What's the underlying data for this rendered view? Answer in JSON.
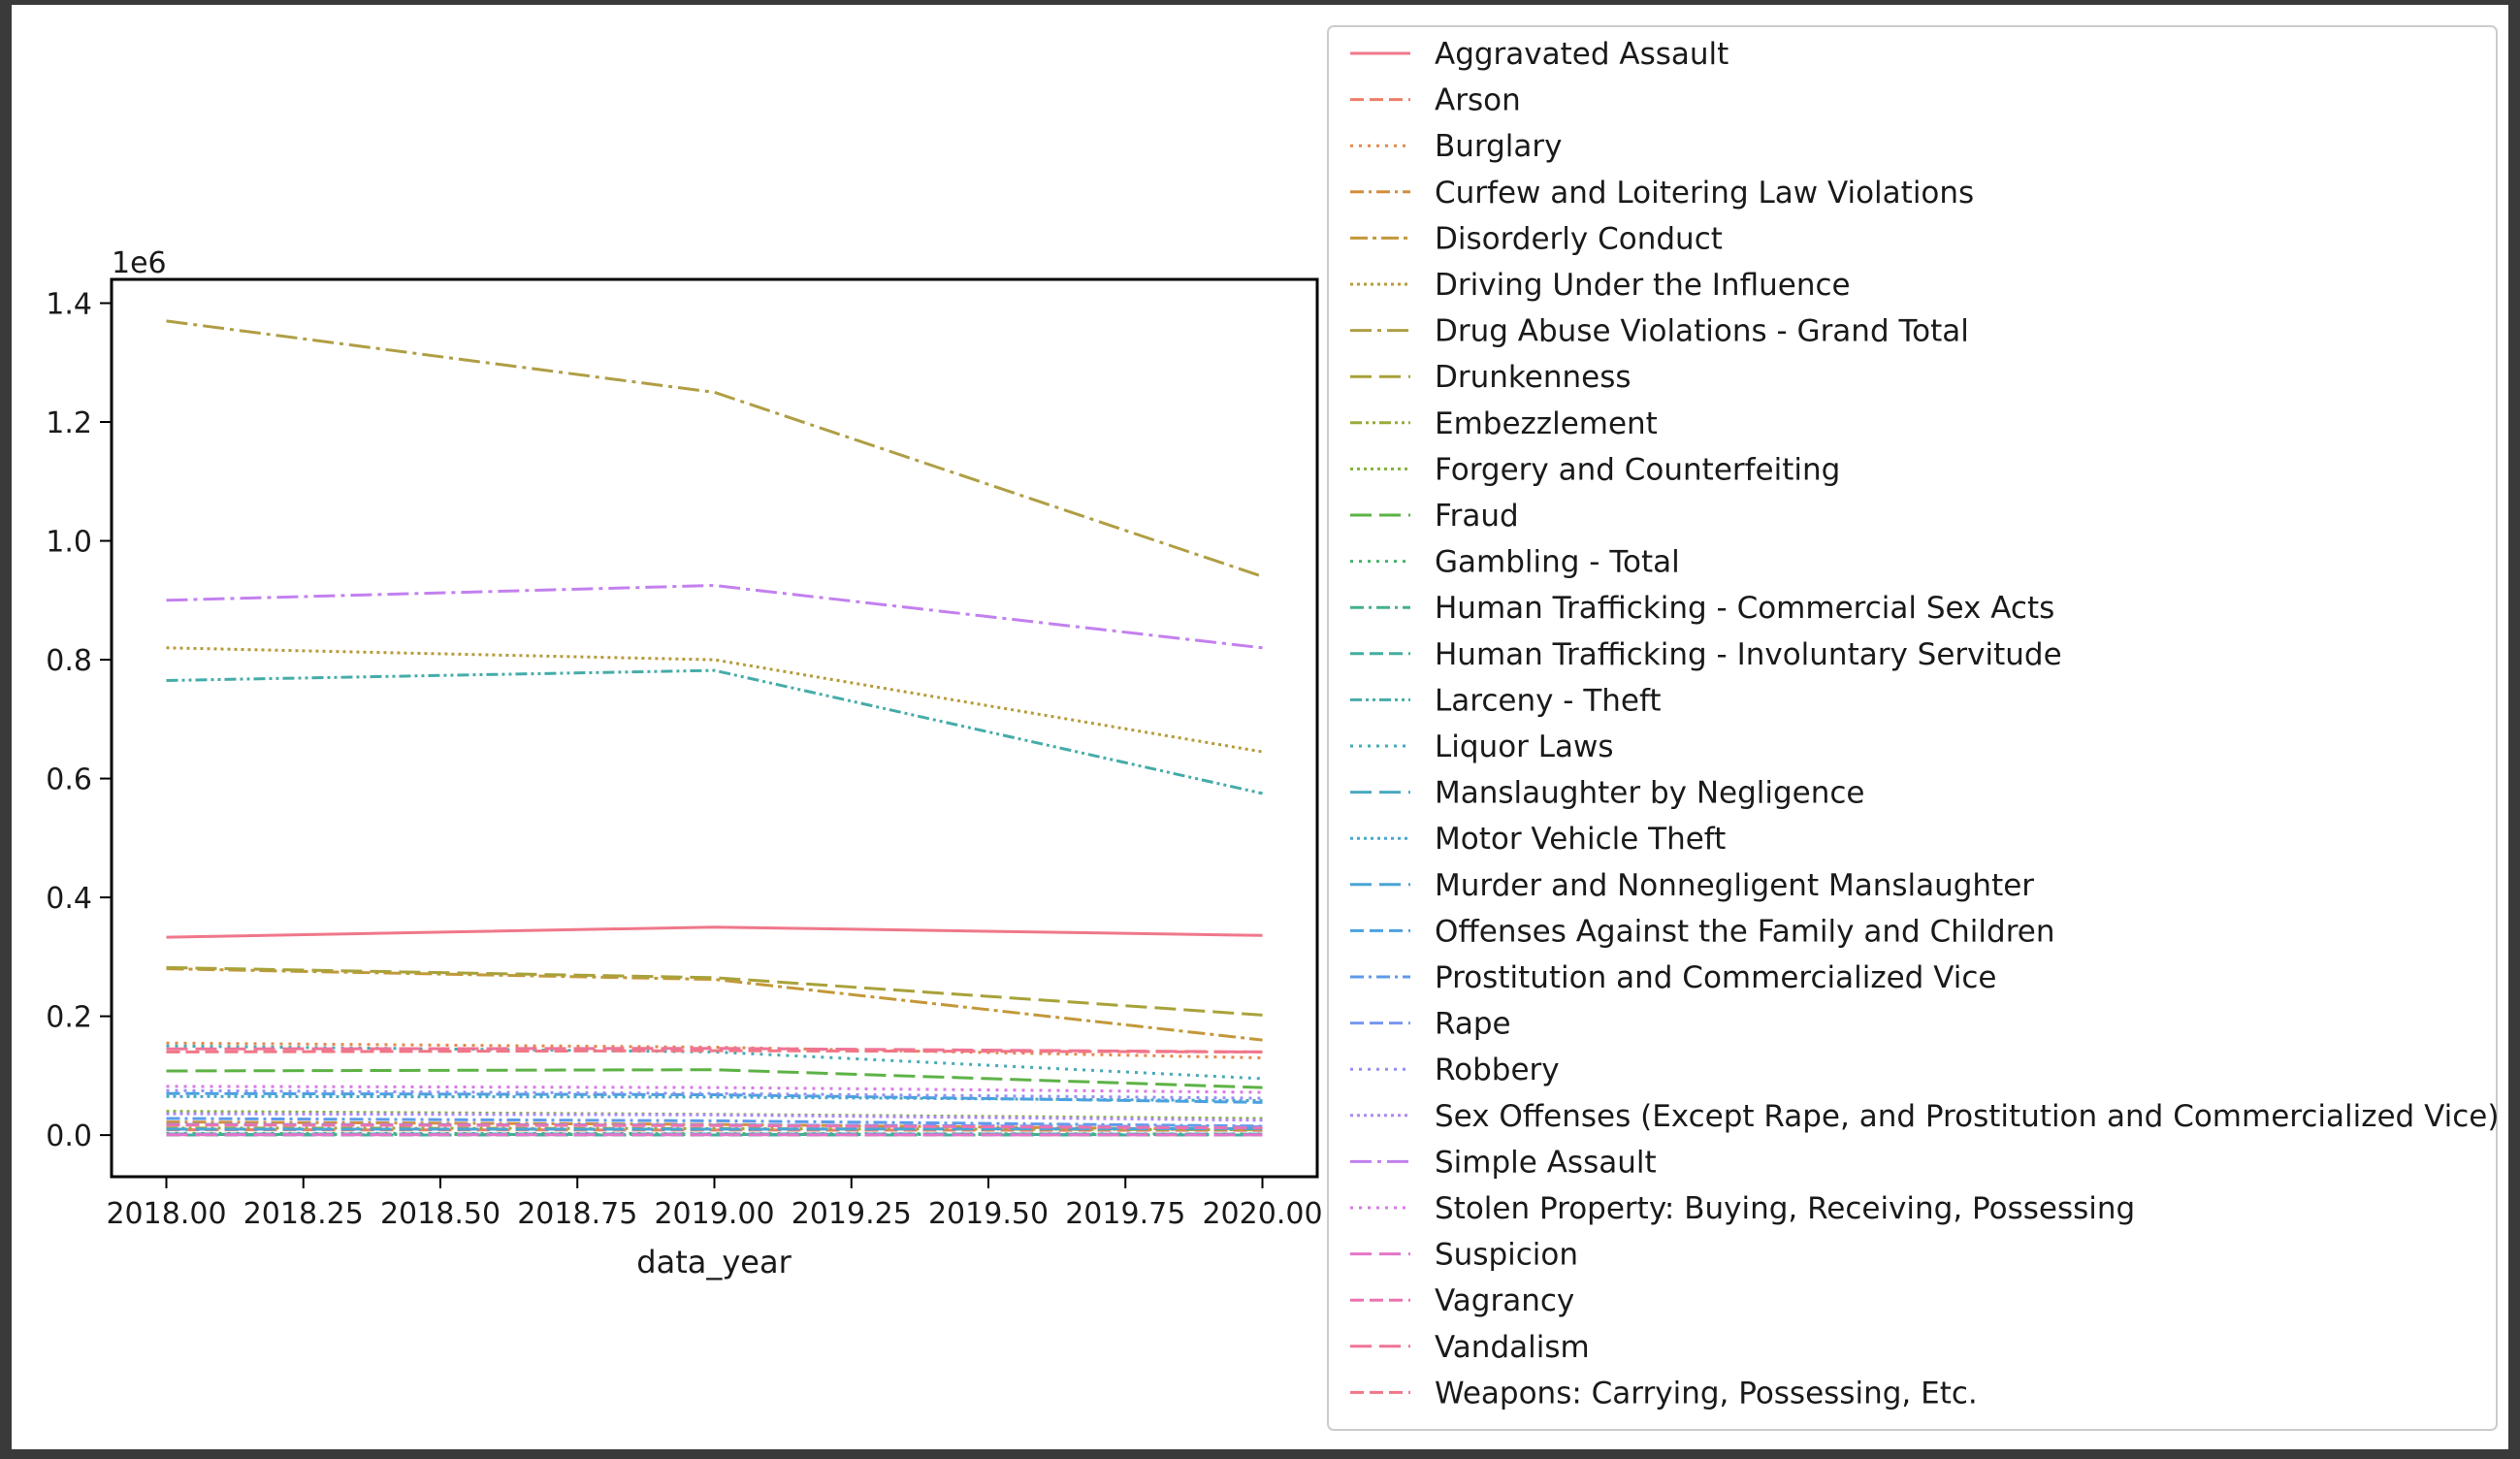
{
  "chart_data": {
    "type": "line",
    "title": "",
    "xlabel": "data_year",
    "ylabel": "",
    "y_offset_label": "1e6",
    "xlim": [
      2017.9,
      2020.1
    ],
    "ylim": [
      -70000,
      1440000
    ],
    "x_ticks": [
      2018.0,
      2018.25,
      2018.5,
      2018.75,
      2019.0,
      2019.25,
      2019.5,
      2019.75,
      2020.0
    ],
    "x_tick_labels": [
      "2018.00",
      "2018.25",
      "2018.50",
      "2018.75",
      "2019.00",
      "2019.25",
      "2019.50",
      "2019.75",
      "2020.00"
    ],
    "y_ticks": [
      0,
      200000,
      400000,
      600000,
      800000,
      1000000,
      1200000,
      1400000
    ],
    "y_tick_labels": [
      "0.0",
      "0.2",
      "0.4",
      "0.6",
      "0.8",
      "1.0",
      "1.2",
      "1.4"
    ],
    "grid": false,
    "legend_position": "outside right",
    "x": [
      2018,
      2019,
      2020
    ],
    "series": [
      {
        "name": "Aggravated Assault",
        "color": "#f0778a",
        "dash": "solid",
        "values": [
          333000,
          350000,
          336000
        ]
      },
      {
        "name": "Arson",
        "color": "#ec7e6a",
        "dash": "dashed",
        "values": [
          9000,
          8500,
          8000
        ]
      },
      {
        "name": "Burglary",
        "color": "#e08a4c",
        "dash": "dotted",
        "values": [
          155000,
          148000,
          130000
        ]
      },
      {
        "name": "Curfew and Loitering Law Violations",
        "color": "#d38e3b",
        "dash": "dashdot",
        "values": [
          22000,
          18000,
          9000
        ]
      },
      {
        "name": "Disorderly Conduct",
        "color": "#c3983a",
        "dash": "dashdot2",
        "values": [
          280000,
          262000,
          160000
        ]
      },
      {
        "name": "Driving Under the Influence",
        "color": "#b79b3a",
        "dash": "densedot",
        "values": [
          820000,
          800000,
          645000
        ]
      },
      {
        "name": "Drug Abuse Violations - Grand Total",
        "color": "#b09e44",
        "dash": "longdashdot",
        "values": [
          1370000,
          1250000,
          940000
        ]
      },
      {
        "name": "Drunkenness",
        "color": "#a8a23a",
        "dash": "longdash",
        "values": [
          282000,
          265000,
          202000
        ]
      },
      {
        "name": "Embezzlement",
        "color": "#9aaa3c",
        "dash": "dashdotdot",
        "values": [
          12000,
          11000,
          9000
        ]
      },
      {
        "name": "Forgery and Counterfeiting",
        "color": "#83b13f",
        "dash": "densedot",
        "values": [
          40000,
          35000,
          28000
        ]
      },
      {
        "name": "Fraud",
        "color": "#5db246",
        "dash": "longdash",
        "values": [
          108000,
          110000,
          80000
        ]
      },
      {
        "name": "Gambling - Total",
        "color": "#47b36a",
        "dash": "dotted",
        "values": [
          3000,
          2500,
          2000
        ]
      },
      {
        "name": "Human Trafficking - Commercial Sex Acts",
        "color": "#43b08e",
        "dash": "dashdot",
        "values": [
          1000,
          1000,
          900
        ]
      },
      {
        "name": "Human Trafficking - Involuntary Servitude",
        "color": "#44ae9e",
        "dash": "dashed",
        "values": [
          200,
          200,
          150
        ]
      },
      {
        "name": "Larceny - Theft",
        "color": "#45aca9",
        "dash": "dashdotdot",
        "values": [
          765000,
          782000,
          575000
        ]
      },
      {
        "name": "Liquor Laws",
        "color": "#46abb5",
        "dash": "dotted",
        "values": [
          150000,
          140000,
          95000
        ]
      },
      {
        "name": "Manslaughter by Negligence",
        "color": "#47a9bf",
        "dash": "longdash",
        "values": [
          1800,
          1800,
          1700
        ]
      },
      {
        "name": "Motor Vehicle Theft",
        "color": "#49a7c9",
        "dash": "densedot",
        "values": [
          65000,
          64000,
          58000
        ]
      },
      {
        "name": "Murder and Nonnegligent Manslaughter",
        "color": "#4aa4d4",
        "dash": "longdash",
        "values": [
          10000,
          10000,
          11000
        ]
      },
      {
        "name": "Offenses Against the Family and Children",
        "color": "#4ba1e0",
        "dash": "dashed",
        "values": [
          70000,
          68000,
          55000
        ]
      },
      {
        "name": "Prostitution and Commercialized Vice",
        "color": "#5d9bea",
        "dash": "dashdot",
        "values": [
          28000,
          24000,
          15000
        ]
      },
      {
        "name": "Rape",
        "color": "#7896f0",
        "dash": "dashed",
        "values": [
          18000,
          17000,
          14000
        ]
      },
      {
        "name": "Robbery",
        "color": "#938ff3",
        "dash": "dotted",
        "values": [
          75000,
          70000,
          62000
        ]
      },
      {
        "name": "Sex Offenses (Except Rape, and Prostitution and Commercialized Vice)",
        "color": "#ae88f1",
        "dash": "densedot",
        "values": [
          36000,
          34000,
          25000
        ]
      },
      {
        "name": "Simple Assault",
        "color": "#c380ee",
        "dash": "longdashdot",
        "values": [
          900000,
          925000,
          820000
        ]
      },
      {
        "name": "Stolen Property: Buying, Receiving, Possessing",
        "color": "#d878e6",
        "dash": "dotted",
        "values": [
          82000,
          80000,
          72000
        ]
      },
      {
        "name": "Suspicion",
        "color": "#e375c9",
        "dash": "longdash",
        "values": [
          600,
          500,
          400
        ]
      },
      {
        "name": "Vagrancy",
        "color": "#ea73b0",
        "dash": "dashed",
        "values": [
          17000,
          16000,
          12000
        ]
      },
      {
        "name": "Vandalism",
        "color": "#ef7497",
        "dash": "longdash",
        "values": [
          145000,
          146000,
          140000
        ]
      },
      {
        "name": "Weapons: Carrying, Possessing, Etc.",
        "color": "#f07685",
        "dash": "dashed",
        "values": [
          140000,
          142000,
          140000
        ]
      }
    ]
  }
}
